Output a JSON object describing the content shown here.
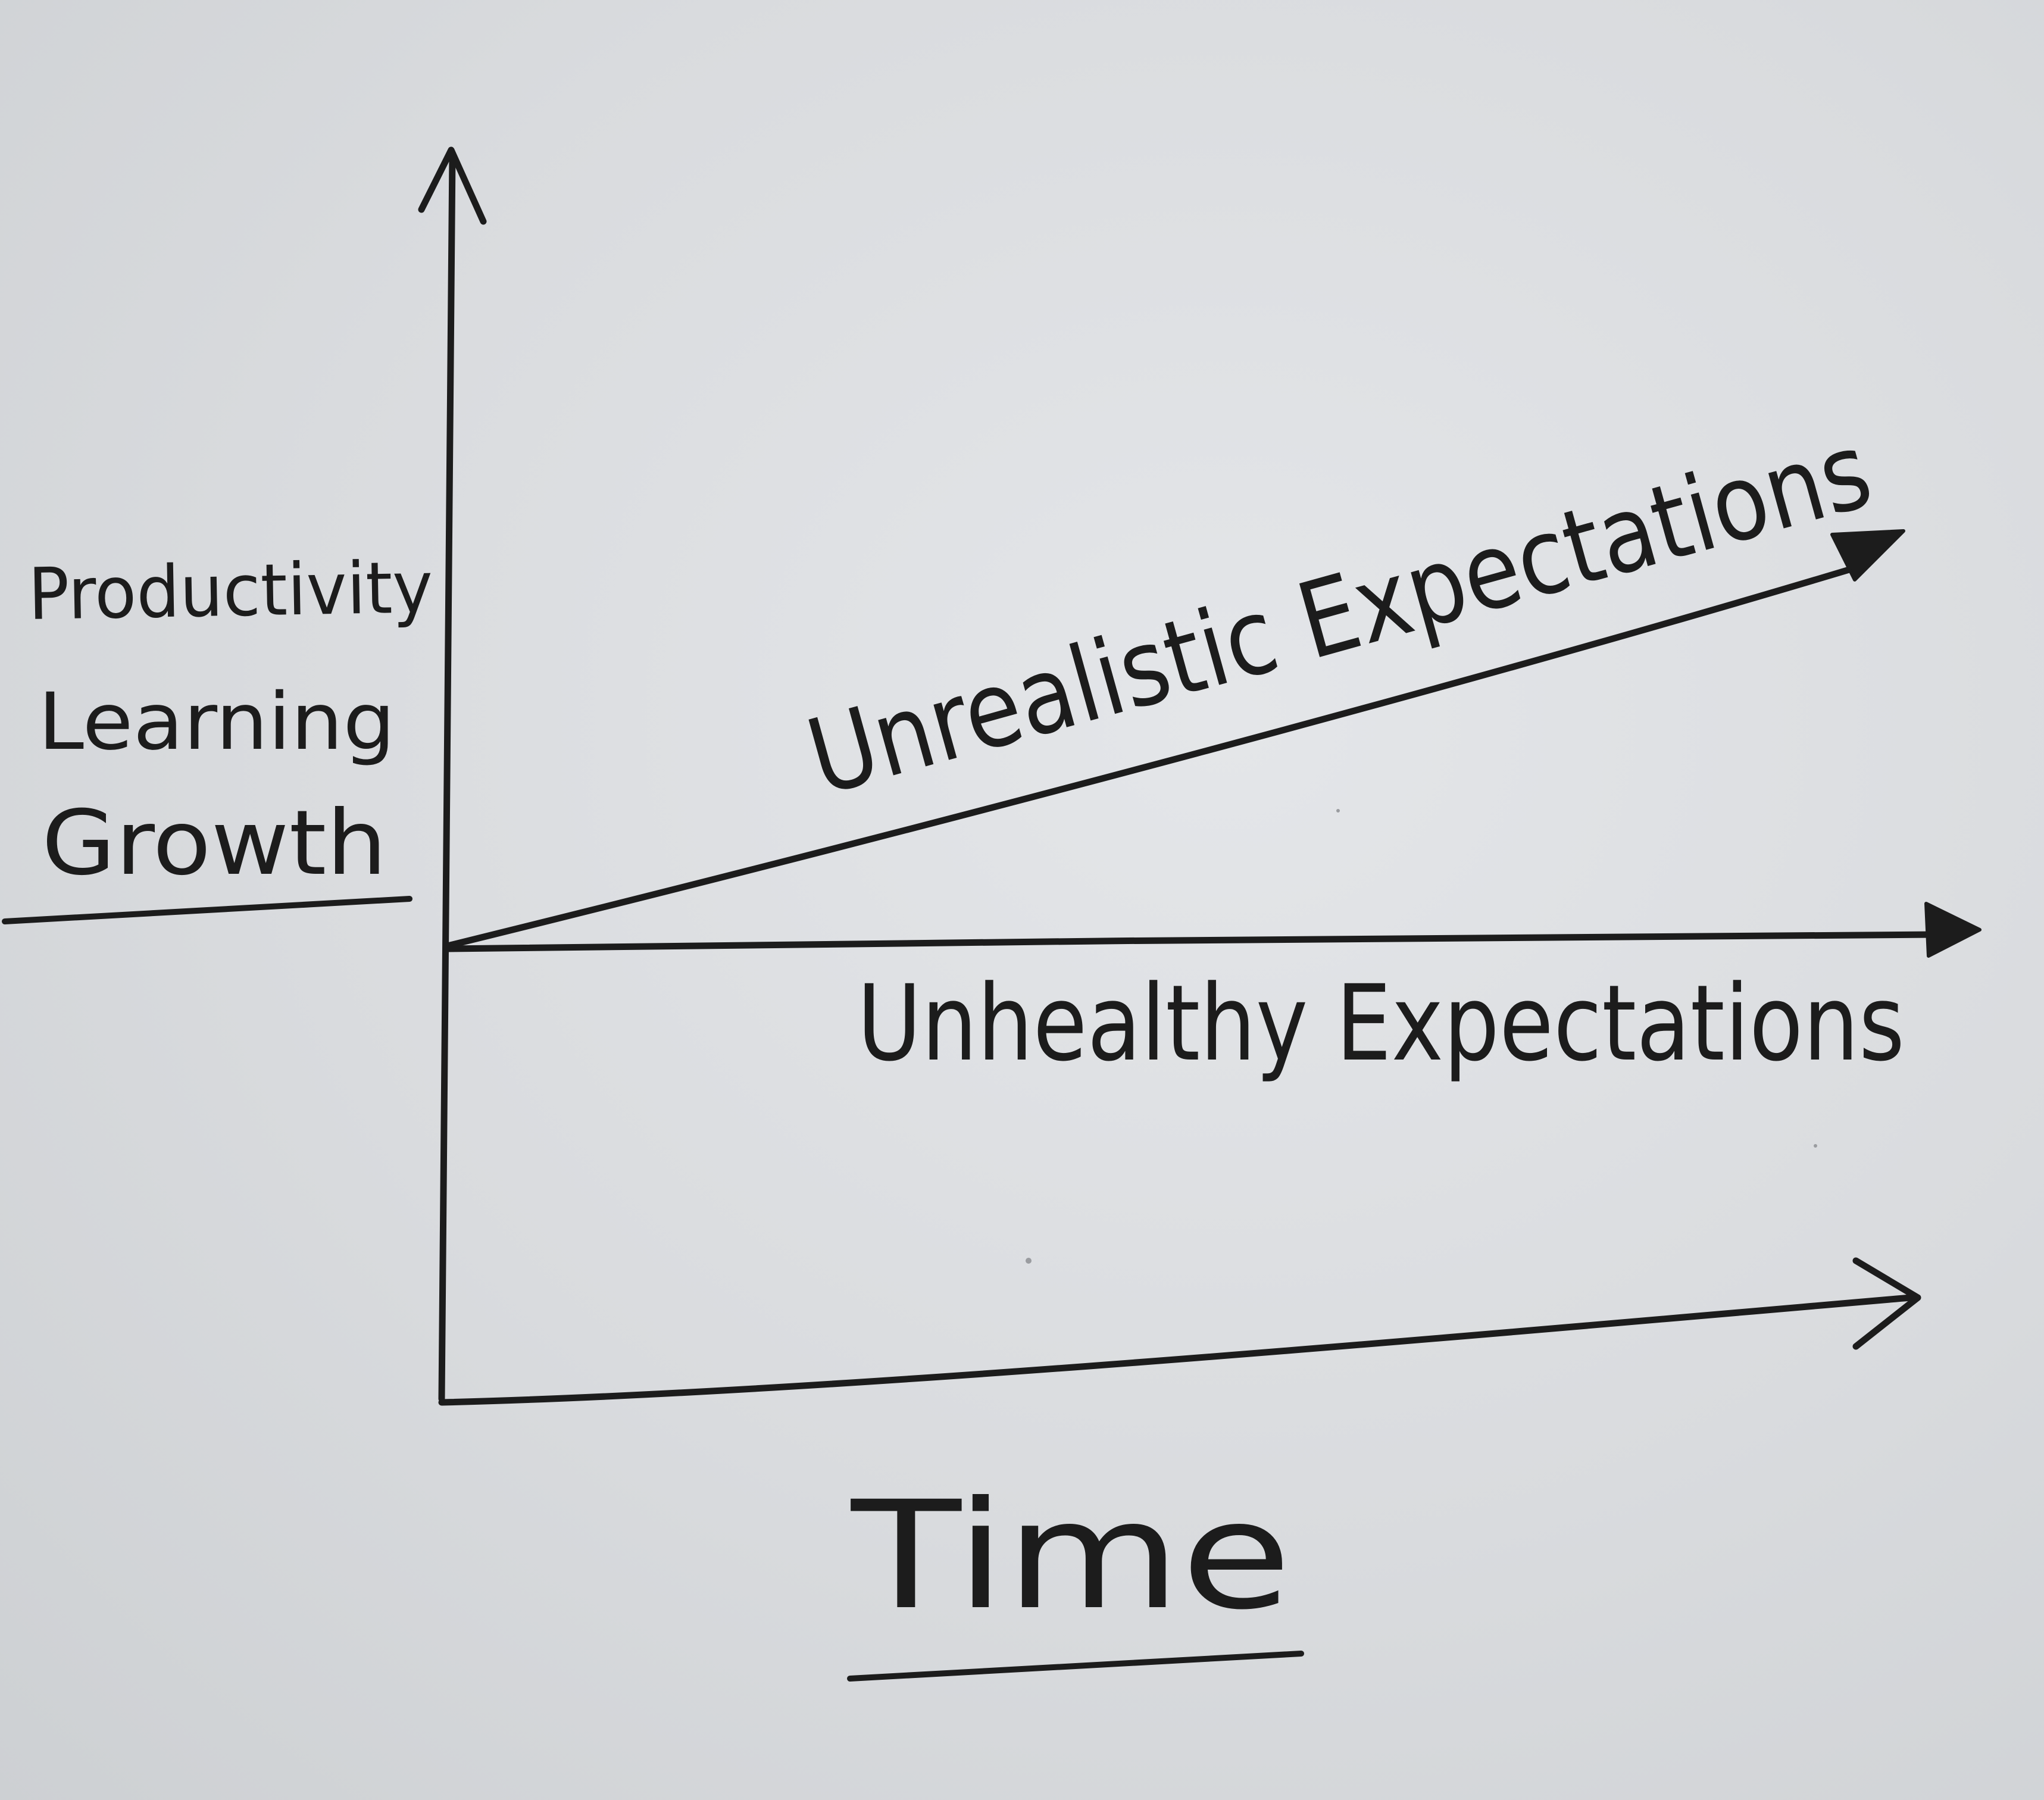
{
  "y_axis_label_lines": [
    "Productivity",
    "Learning",
    "Growth"
  ],
  "x_axis_label": "Time",
  "curves": {
    "unrealistic": "Unrealistic Expectations",
    "unhealthy": "Unhealthy Expectations"
  },
  "ink_color": "#1c1c1c",
  "paper_color": "#dcdee1"
}
